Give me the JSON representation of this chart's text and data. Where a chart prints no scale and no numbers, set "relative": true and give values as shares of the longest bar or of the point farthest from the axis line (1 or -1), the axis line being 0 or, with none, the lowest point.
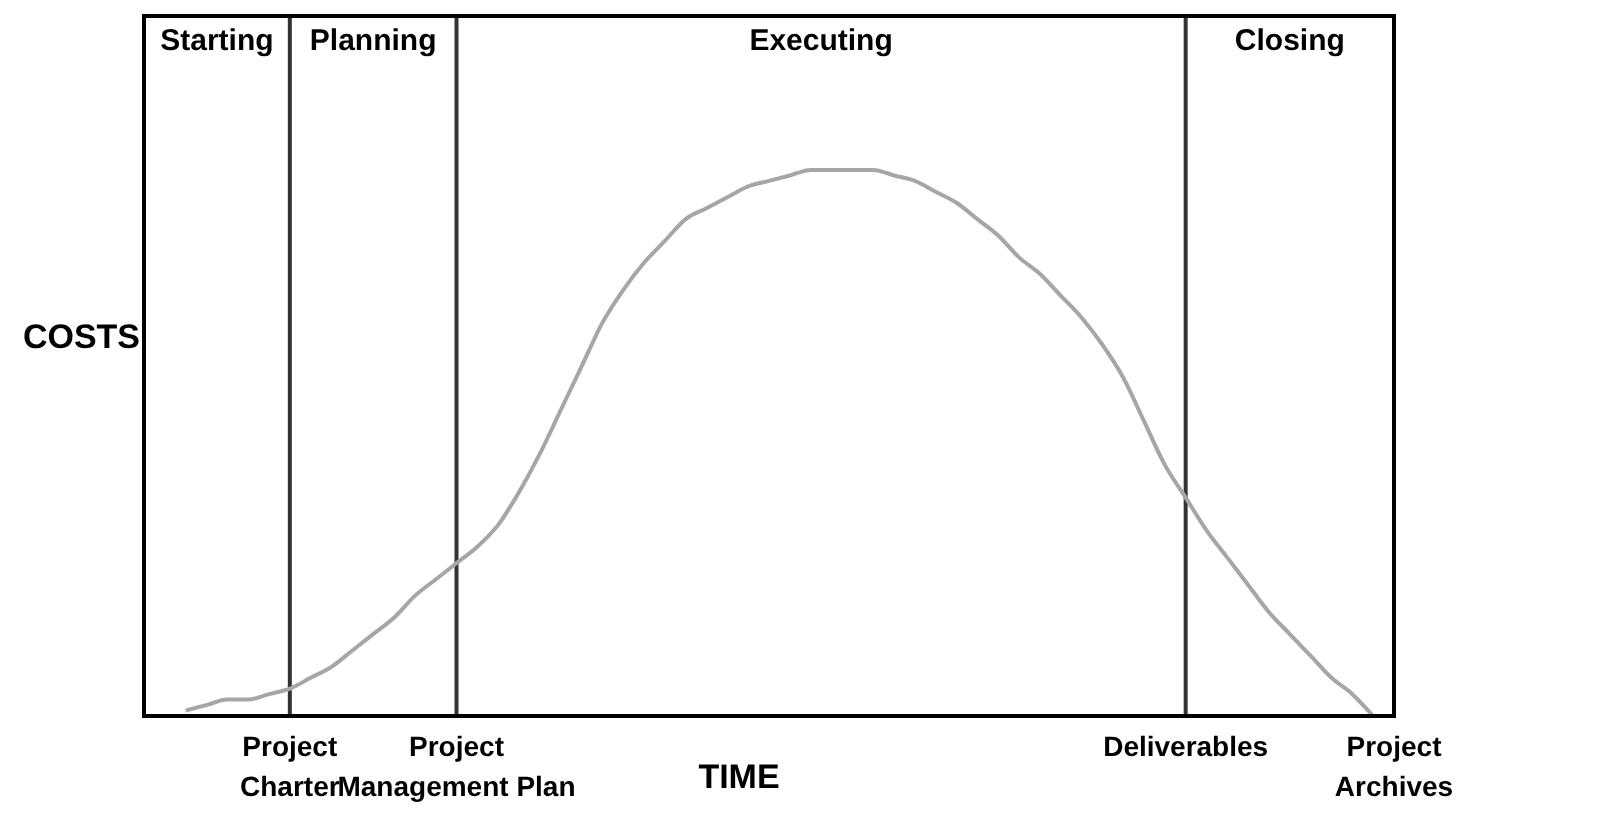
{
  "chart_data": {
    "type": "line",
    "relative": true,
    "xlabel": "TIME",
    "ylabel": "COSTS",
    "categories": [
      null,
      null,
      null,
      null,
      null,
      null,
      null,
      "Project Charter",
      null,
      null,
      null,
      null,
      null,
      null,
      null,
      "Project Management Plan",
      null,
      null,
      null,
      null,
      null,
      null,
      null,
      null,
      null,
      null,
      null,
      null,
      null,
      null,
      null,
      null,
      null,
      null,
      null,
      null,
      null,
      null,
      null,
      null,
      null,
      null,
      null,
      null,
      null,
      null,
      null,
      null,
      null,
      null,
      "Deliverables",
      null,
      null,
      null,
      null,
      null,
      null,
      null,
      null,
      null,
      "Project Archives"
    ],
    "series": [
      {
        "color": "#a6a6a6",
        "values": [
          null,
          null,
          0.01,
          0.02,
          0.03,
          0.03,
          0.04,
          0.05,
          0.07,
          0.09,
          0.12,
          0.15,
          0.18,
          0.22,
          0.25,
          0.28,
          0.31,
          0.35,
          0.41,
          0.48,
          0.56,
          0.64,
          0.72,
          0.78,
          0.83,
          0.87,
          0.91,
          0.93,
          0.95,
          0.97,
          0.98,
          0.99,
          1,
          1,
          1,
          1,
          0.99,
          0.98,
          0.96,
          0.94,
          0.91,
          0.88,
          0.84,
          0.81,
          0.77,
          0.73,
          0.68,
          0.62,
          0.54,
          0.46,
          0.4,
          0.34,
          0.29,
          0.24,
          0.19,
          0.15,
          0.11,
          0.07,
          0.04,
          0,
          null
        ]
      }
    ],
    "ref_lines": [
      {
        "axis": "x",
        "value": "Project Charter",
        "color": "#333333"
      },
      {
        "axis": "x",
        "value": "Project Management Plan",
        "color": "#333333"
      },
      {
        "axis": "x",
        "value": "Deliverables",
        "color": "#333333"
      }
    ],
    "annotations": [
      "Starting",
      "Planning",
      "Executing",
      "Closing"
    ]
  }
}
